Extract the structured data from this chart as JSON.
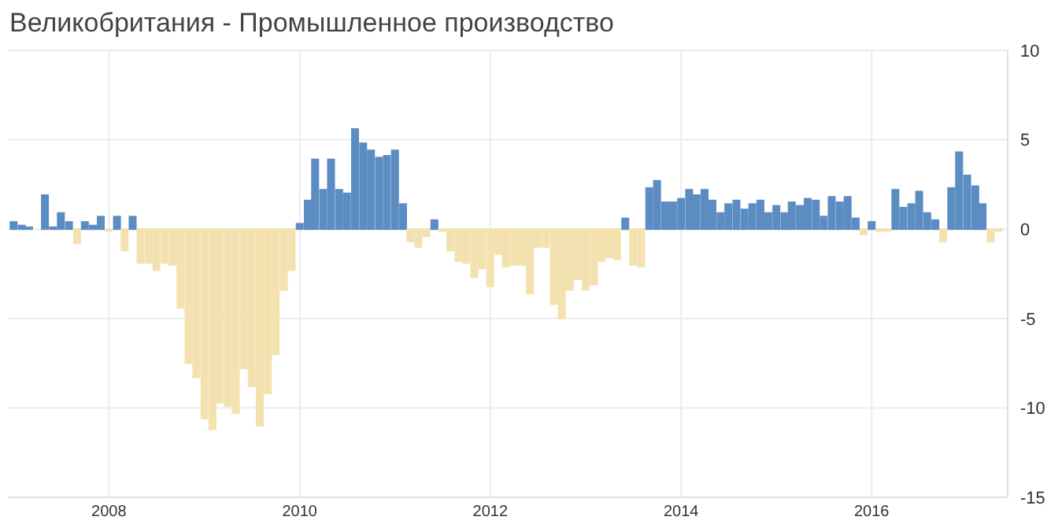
{
  "chart_data": {
    "type": "bar",
    "title": "Великобритания - Промышленное производство",
    "x": [
      "2007-01",
      "2007-02",
      "2007-03",
      "2007-04",
      "2007-05",
      "2007-06",
      "2007-07",
      "2007-08",
      "2007-09",
      "2007-10",
      "2007-11",
      "2007-12",
      "2008-01",
      "2008-02",
      "2008-03",
      "2008-04",
      "2008-05",
      "2008-06",
      "2008-07",
      "2008-08",
      "2008-09",
      "2008-10",
      "2008-11",
      "2008-12",
      "2009-01",
      "2009-02",
      "2009-03",
      "2009-04",
      "2009-05",
      "2009-06",
      "2009-07",
      "2009-08",
      "2009-09",
      "2009-10",
      "2009-11",
      "2009-12",
      "2010-01",
      "2010-02",
      "2010-03",
      "2010-04",
      "2010-05",
      "2010-06",
      "2010-07",
      "2010-08",
      "2010-09",
      "2010-10",
      "2010-11",
      "2010-12",
      "2011-01",
      "2011-02",
      "2011-03",
      "2011-04",
      "2011-05",
      "2011-06",
      "2011-07",
      "2011-08",
      "2011-09",
      "2011-10",
      "2011-11",
      "2011-12",
      "2012-01",
      "2012-02",
      "2012-03",
      "2012-04",
      "2012-05",
      "2012-06",
      "2012-07",
      "2012-08",
      "2012-09",
      "2012-10",
      "2012-11",
      "2012-12",
      "2013-01",
      "2013-02",
      "2013-03",
      "2013-04",
      "2013-05",
      "2013-06",
      "2013-07",
      "2013-08",
      "2013-09",
      "2013-10",
      "2013-11",
      "2013-12",
      "2014-01",
      "2014-02",
      "2014-03",
      "2014-04",
      "2014-05",
      "2014-06",
      "2014-07",
      "2014-08",
      "2014-09",
      "2014-10",
      "2014-11",
      "2014-12",
      "2015-01",
      "2015-02",
      "2015-03",
      "2015-04",
      "2015-05",
      "2015-06",
      "2015-07",
      "2015-08",
      "2015-09",
      "2015-10",
      "2015-11",
      "2015-12",
      "2016-01",
      "2016-02",
      "2016-03",
      "2016-04",
      "2016-05",
      "2016-06",
      "2016-07",
      "2016-08",
      "2016-09",
      "2016-10",
      "2016-11",
      "2016-12",
      "2017-01",
      "2017-02",
      "2017-03",
      "2017-04",
      "2017-05"
    ],
    "series": [
      {
        "colors": [
          "#5b8cc2",
          "#5b8cc2",
          "#5b8cc2",
          "#5b8cc2",
          "#5b8cc2",
          "#5b8cc2",
          "#5b8cc2",
          "#5b8cc2",
          "#f3e2b0",
          "#5b8cc2",
          "#5b8cc2",
          "#5b8cc2",
          "#f3e2b0",
          "#5b8cc2",
          "#f3e2b0",
          "#5b8cc2",
          "#f3e2b0",
          "#f3e2b0",
          "#f3e2b0",
          "#f3e2b0",
          "#f3e2b0",
          "#f3e2b0",
          "#f3e2b0",
          "#f3e2b0",
          "#f3e2b0",
          "#f3e2b0",
          "#f3e2b0",
          "#f3e2b0",
          "#f3e2b0",
          "#f3e2b0",
          "#f3e2b0",
          "#f3e2b0",
          "#f3e2b0",
          "#f3e2b0",
          "#f3e2b0",
          "#f3e2b0",
          "#5b8cc2",
          "#5b8cc2",
          "#5b8cc2",
          "#5b8cc2",
          "#5b8cc2",
          "#5b8cc2",
          "#5b8cc2",
          "#5b8cc2",
          "#5b8cc2",
          "#5b8cc2",
          "#5b8cc2",
          "#5b8cc2",
          "#5b8cc2",
          "#5b8cc2",
          "#f3e2b0",
          "#f3e2b0",
          "#f3e2b0",
          "#5b8cc2",
          "#f3e2b0",
          "#f3e2b0",
          "#f3e2b0",
          "#f3e2b0",
          "#f3e2b0",
          "#f3e2b0",
          "#f3e2b0",
          "#f3e2b0",
          "#f3e2b0",
          "#f3e2b0",
          "#f3e2b0",
          "#f3e2b0",
          "#f3e2b0",
          "#f3e2b0",
          "#f3e2b0",
          "#f3e2b0",
          "#f3e2b0",
          "#f3e2b0",
          "#f3e2b0",
          "#f3e2b0",
          "#f3e2b0",
          "#f3e2b0",
          "#f3e2b0",
          "#5b8cc2",
          "#f3e2b0",
          "#f3e2b0",
          "#5b8cc2",
          "#5b8cc2",
          "#5b8cc2",
          "#5b8cc2",
          "#5b8cc2",
          "#5b8cc2",
          "#5b8cc2",
          "#5b8cc2",
          "#5b8cc2",
          "#5b8cc2",
          "#5b8cc2",
          "#5b8cc2",
          "#5b8cc2",
          "#5b8cc2",
          "#5b8cc2",
          "#5b8cc2",
          "#5b8cc2",
          "#5b8cc2",
          "#5b8cc2",
          "#5b8cc2",
          "#5b8cc2",
          "#5b8cc2",
          "#5b8cc2",
          "#5b8cc2",
          "#5b8cc2",
          "#5b8cc2",
          "#5b8cc2",
          "#f3e2b0",
          "#5b8cc2",
          "#f3e2b0",
          "#f3e2b0",
          "#5b8cc2",
          "#5b8cc2",
          "#5b8cc2",
          "#5b8cc2",
          "#5b8cc2",
          "#5b8cc2",
          "#f3e2b0",
          "#5b8cc2",
          "#5b8cc2",
          "#5b8cc2",
          "#5b8cc2",
          "#5b8cc2",
          "#f3e2b0",
          "#f3e2b0"
        ],
        "values": [
          0.4,
          0.2,
          0.1,
          0.0,
          1.9,
          0.1,
          0.9,
          0.4,
          -0.8,
          0.4,
          0.2,
          0.7,
          -0.1,
          0.7,
          -1.2,
          0.7,
          -1.9,
          -1.9,
          -2.3,
          -1.9,
          -2.0,
          -4.4,
          -7.5,
          -8.3,
          -10.6,
          -11.2,
          -9.7,
          -9.9,
          -10.3,
          -7.8,
          -8.8,
          -11.0,
          -9.2,
          -7.0,
          -3.4,
          -2.3,
          0.3,
          1.6,
          3.9,
          2.2,
          3.9,
          2.2,
          2.0,
          5.6,
          4.8,
          4.4,
          4.0,
          4.1,
          4.4,
          1.4,
          -0.7,
          -1.0,
          -0.4,
          0.5,
          -0.1,
          -1.2,
          -1.8,
          -1.9,
          -2.7,
          -2.2,
          -3.2,
          -1.4,
          -2.1,
          -2.0,
          -2.0,
          -3.6,
          -1.0,
          -1.0,
          -4.2,
          -5.0,
          -3.4,
          -2.8,
          -3.4,
          -3.1,
          -1.8,
          -1.6,
          -1.7,
          0.6,
          -2.0,
          -2.1,
          2.3,
          2.7,
          1.5,
          1.5,
          1.7,
          2.2,
          1.9,
          2.2,
          1.6,
          0.9,
          1.4,
          1.6,
          1.1,
          1.4,
          1.6,
          0.9,
          1.3,
          0.9,
          1.5,
          1.3,
          1.7,
          1.6,
          0.7,
          1.8,
          1.5,
          1.8,
          0.6,
          -0.3,
          0.4,
          -0.1,
          -0.1,
          2.2,
          1.2,
          1.4,
          2.1,
          0.9,
          0.5,
          -0.7,
          2.3,
          4.3,
          3.0,
          2.4,
          1.4,
          -0.7,
          -0.1
        ]
      }
    ],
    "xlim": [
      "2006-12-10",
      "2017-06-05"
    ],
    "xticks": [
      "2008",
      "2010",
      "2012",
      "2014",
      "2016"
    ],
    "ylim": [
      -15,
      10
    ],
    "yticks": [
      -15,
      -10,
      -5,
      0,
      5,
      10
    ],
    "grid": true
  }
}
